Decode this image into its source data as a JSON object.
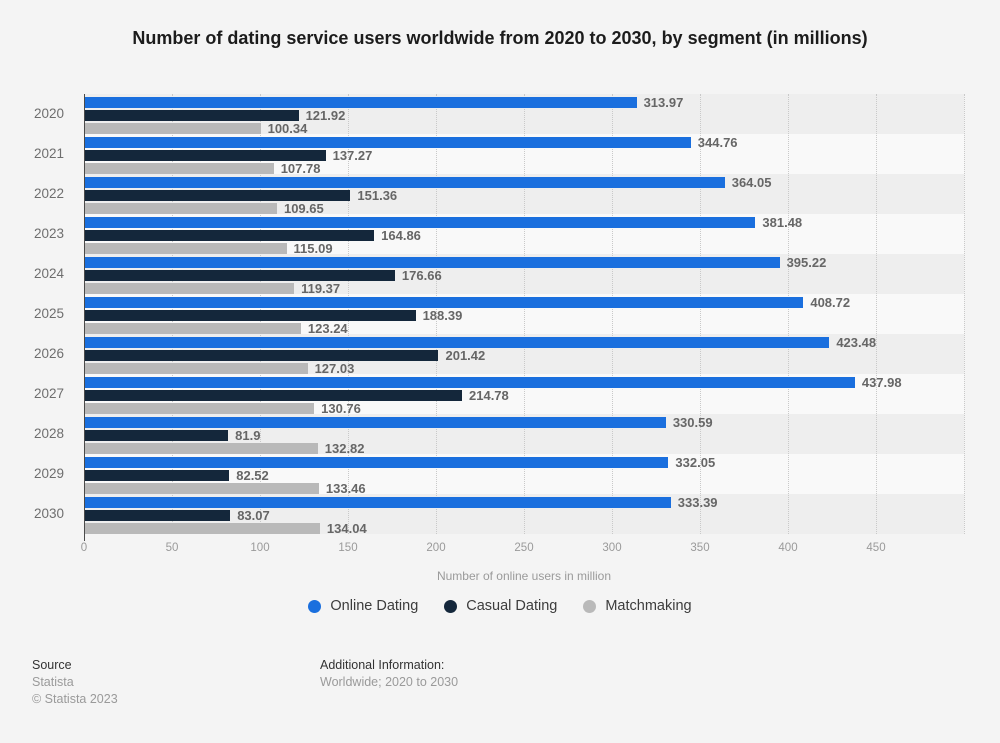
{
  "chart_data": {
    "type": "bar",
    "orientation": "horizontal",
    "title": "Number of dating service users worldwide from 2020 to 2030, by segment (in millions)",
    "xlabel": "Number of online users in million",
    "categories": [
      "2020",
      "2021",
      "2022",
      "2023",
      "2024",
      "2025",
      "2026",
      "2027",
      "2028",
      "2029",
      "2030"
    ],
    "series": [
      {
        "name": "Online Dating",
        "color": "#1a6fde",
        "values": [
          313.97,
          344.76,
          364.05,
          381.48,
          395.22,
          408.72,
          423.48,
          437.98,
          330.59,
          332.05,
          333.39
        ]
      },
      {
        "name": "Casual Dating",
        "color": "#14273b",
        "values": [
          121.92,
          137.27,
          151.36,
          164.86,
          176.66,
          188.39,
          201.42,
          214.78,
          81.9,
          82.52,
          83.07
        ]
      },
      {
        "name": "Matchmaking",
        "color": "#b9b9b9",
        "values": [
          100.34,
          107.78,
          109.65,
          115.09,
          119.37,
          123.24,
          127.03,
          130.76,
          132.82,
          133.46,
          134.04
        ]
      }
    ],
    "xlim": [
      0,
      500
    ],
    "xticks": [
      0,
      50,
      100,
      150,
      200,
      250,
      300,
      350,
      400,
      450
    ],
    "grid": true,
    "legend_position": "bottom",
    "stripe_colors": [
      "#eeeeee",
      "#f9f9f9"
    ],
    "value_label_color": "#666666"
  },
  "footer": {
    "source_label": "Source",
    "source_name": "Statista",
    "copyright": "© Statista 2023",
    "additional_info_label": "Additional Information:",
    "additional_info_value": "Worldwide; 2020 to 2030"
  }
}
